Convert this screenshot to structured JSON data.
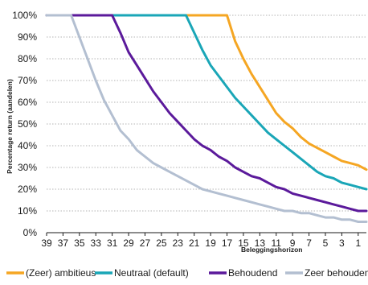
{
  "chart_data": {
    "type": "line",
    "title": "",
    "xlabel": "Beleggingshorizon",
    "ylabel": "Percentage return (aandelen)",
    "xlim": [
      39,
      0
    ],
    "ylim": [
      0,
      100
    ],
    "x_ticks": [
      "39",
      "37",
      "35",
      "33",
      "31",
      "29",
      "27",
      "25",
      "23",
      "21",
      "19",
      "17",
      "15",
      "13",
      "11",
      "9",
      "7",
      "5",
      "3",
      "1"
    ],
    "y_ticks": [
      "0%",
      "10%",
      "20%",
      "30%",
      "40%",
      "50%",
      "60%",
      "70%",
      "80%",
      "90%",
      "100%"
    ],
    "grid": "horizontal",
    "legend_position": "bottom",
    "series": [
      {
        "name": "(Zeer) ambitieus",
        "color": "#f5a623",
        "x": [
          39,
          17,
          16,
          15,
          14,
          13,
          12,
          11,
          10,
          9,
          8,
          7,
          6,
          5,
          4,
          3,
          2,
          1,
          0
        ],
        "y": [
          100,
          100,
          88,
          80,
          73,
          67,
          61,
          55,
          51,
          48,
          44,
          41,
          39,
          37,
          35,
          33,
          32,
          31,
          29
        ]
      },
      {
        "name": "Neutraal (default)",
        "color": "#1aa6b7",
        "x": [
          39,
          22,
          21,
          20,
          19,
          18,
          17,
          16,
          15,
          14,
          13,
          12,
          11,
          10,
          9,
          8,
          7,
          6,
          5,
          4,
          3,
          2,
          1,
          0
        ],
        "y": [
          100,
          100,
          92,
          84,
          77,
          72,
          67,
          62,
          58,
          54,
          50,
          46,
          43,
          40,
          37,
          34,
          31,
          28,
          26,
          25,
          23,
          22,
          21,
          20
        ]
      },
      {
        "name": "Behoudend",
        "color": "#5b1a9b",
        "x": [
          39,
          31,
          30,
          29,
          28,
          27,
          26,
          25,
          24,
          23,
          22,
          21,
          20,
          19,
          18,
          17,
          16,
          15,
          14,
          13,
          12,
          11,
          10,
          9,
          8,
          7,
          6,
          5,
          4,
          3,
          2,
          1,
          0
        ],
        "y": [
          100,
          100,
          92,
          83,
          77,
          71,
          65,
          60,
          55,
          51,
          47,
          43,
          40,
          38,
          35,
          33,
          30,
          28,
          26,
          25,
          23,
          21,
          20,
          18,
          17,
          16,
          15,
          14,
          13,
          12,
          11,
          10,
          10
        ]
      },
      {
        "name": "Zeer behoudend",
        "color": "#b3bfd1",
        "x": [
          39,
          36,
          35,
          34,
          33,
          32,
          31,
          30,
          29,
          28,
          27,
          26,
          25,
          24,
          23,
          22,
          21,
          20,
          19,
          18,
          17,
          16,
          15,
          14,
          13,
          12,
          11,
          10,
          9,
          8,
          7,
          6,
          5,
          4,
          3,
          2,
          1,
          0
        ],
        "y": [
          100,
          100,
          90,
          80,
          70,
          61,
          54,
          47,
          43,
          38,
          35,
          32,
          30,
          28,
          26,
          24,
          22,
          20,
          19,
          18,
          17,
          16,
          15,
          14,
          13,
          12,
          11,
          10,
          10,
          9,
          9,
          8,
          7,
          7,
          6,
          6,
          5,
          5
        ]
      }
    ]
  }
}
